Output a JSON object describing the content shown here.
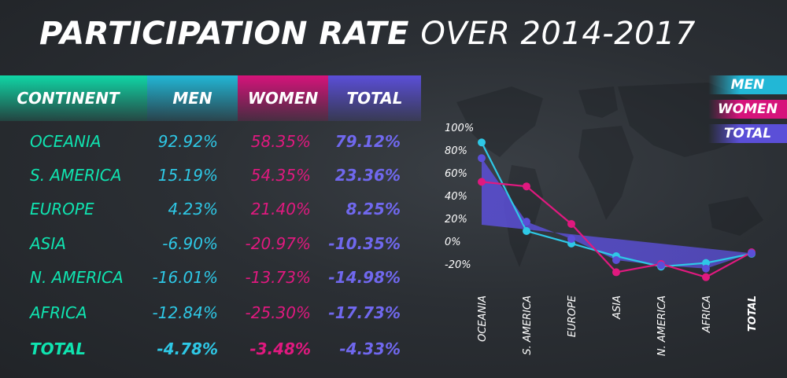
{
  "title_bold": "PARTICIPATION RATE",
  "title_light": "OVER 2014-2017",
  "table": {
    "headers": {
      "continent": "CONTINENT",
      "men": "MEN",
      "women": "WOMEN",
      "total": "TOTAL"
    },
    "rows": [
      {
        "continent": "OCEANIA",
        "men": "92.92%",
        "women": "58.35%",
        "total": "79.12%"
      },
      {
        "continent": "S. AMERICA",
        "men": "15.19%",
        "women": "54.35%",
        "total": "23.36%"
      },
      {
        "continent": "EUROPE",
        "men": "4.23%",
        "women": "21.40%",
        "total": "8.25%"
      },
      {
        "continent": "ASIA",
        "men": "-6.90%",
        "women": "-20.97%",
        "total": "-10.35%"
      },
      {
        "continent": "N. AMERICA",
        "men": "-16.01%",
        "women": "-13.73%",
        "total": "-14.98%"
      },
      {
        "continent": "AFRICA",
        "men": "-12.84%",
        "women": "-25.30%",
        "total": "-17.73%"
      },
      {
        "continent": "TOTAL",
        "men": "-4.78%",
        "women": "-3.48%",
        "total": "-4.33%"
      }
    ]
  },
  "legend": {
    "men": "MEN",
    "women": "WOMEN",
    "total": "TOTAL"
  },
  "colors": {
    "continent": "#10e3b0",
    "men": "#2ec8e6",
    "women": "#e0197f",
    "total": "#5b4fd8"
  },
  "chart_data": {
    "type": "line",
    "categories": [
      "OCEANIA",
      "S. AMERICA",
      "EUROPE",
      "ASIA",
      "N. AMERICA",
      "AFRICA",
      "TOTAL"
    ],
    "series": [
      {
        "name": "MEN",
        "values": [
          92.92,
          15.19,
          4.23,
          -6.9,
          -16.01,
          -12.84,
          -4.78
        ]
      },
      {
        "name": "WOMEN",
        "values": [
          58.35,
          54.35,
          21.4,
          -20.97,
          -13.73,
          -25.3,
          -3.48
        ]
      },
      {
        "name": "TOTAL",
        "values": [
          79.12,
          23.36,
          8.25,
          -10.35,
          -14.98,
          -17.73,
          -4.33
        ]
      }
    ],
    "yticks": [
      "100%",
      "80%",
      "60%",
      "40%",
      "20%",
      "0%",
      "-20%"
    ],
    "ytick_values": [
      100,
      80,
      60,
      40,
      20,
      0,
      -20
    ],
    "ylim": [
      -20,
      100
    ],
    "grid": false,
    "legend": "top-right"
  }
}
